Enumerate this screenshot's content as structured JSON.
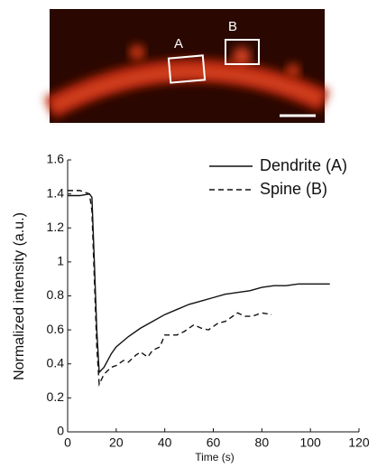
{
  "image": {
    "labels": [
      "A",
      "B"
    ]
  },
  "chart_data": {
    "type": "line",
    "xlabel": "Time (s)",
    "ylabel": "Normalized intensity (a.u.)",
    "xlim": [
      0,
      120
    ],
    "xticks": [
      0,
      20,
      40,
      60,
      80,
      100,
      120
    ],
    "ylim": [
      0,
      1.6
    ],
    "yticks": [
      0,
      0.2,
      0.4,
      0.6,
      0.8,
      1,
      1.2,
      1.4,
      1.6
    ],
    "legend": "upper right",
    "series": [
      {
        "name": "Dendrite (A)",
        "color": "#111111",
        "line_style": "solid",
        "x": [
          0,
          5,
          9,
          10,
          11,
          12,
          13,
          15,
          18,
          20,
          25,
          30,
          35,
          40,
          45,
          50,
          55,
          60,
          65,
          70,
          75,
          80,
          85,
          90,
          95,
          100,
          108
        ],
        "values": [
          1.39,
          1.39,
          1.4,
          1.38,
          1.0,
          0.6,
          0.35,
          0.38,
          0.46,
          0.5,
          0.56,
          0.61,
          0.65,
          0.69,
          0.72,
          0.75,
          0.77,
          0.79,
          0.81,
          0.82,
          0.83,
          0.85,
          0.86,
          0.86,
          0.87,
          0.87,
          0.87
        ]
      },
      {
        "name": "Spine (B)",
        "color": "#111111",
        "line_style": "dashed",
        "x": [
          0,
          5,
          9,
          10,
          11,
          12,
          13,
          15,
          18,
          20,
          23,
          25,
          28,
          30,
          33,
          35,
          38,
          40,
          45,
          48,
          52,
          55,
          58,
          62,
          65,
          70,
          73,
          76,
          80,
          84
        ],
        "values": [
          1.42,
          1.42,
          1.4,
          1.3,
          0.9,
          0.5,
          0.28,
          0.34,
          0.38,
          0.39,
          0.42,
          0.41,
          0.45,
          0.47,
          0.44,
          0.48,
          0.5,
          0.57,
          0.57,
          0.59,
          0.63,
          0.61,
          0.6,
          0.64,
          0.65,
          0.7,
          0.68,
          0.68,
          0.7,
          0.69
        ]
      }
    ]
  }
}
